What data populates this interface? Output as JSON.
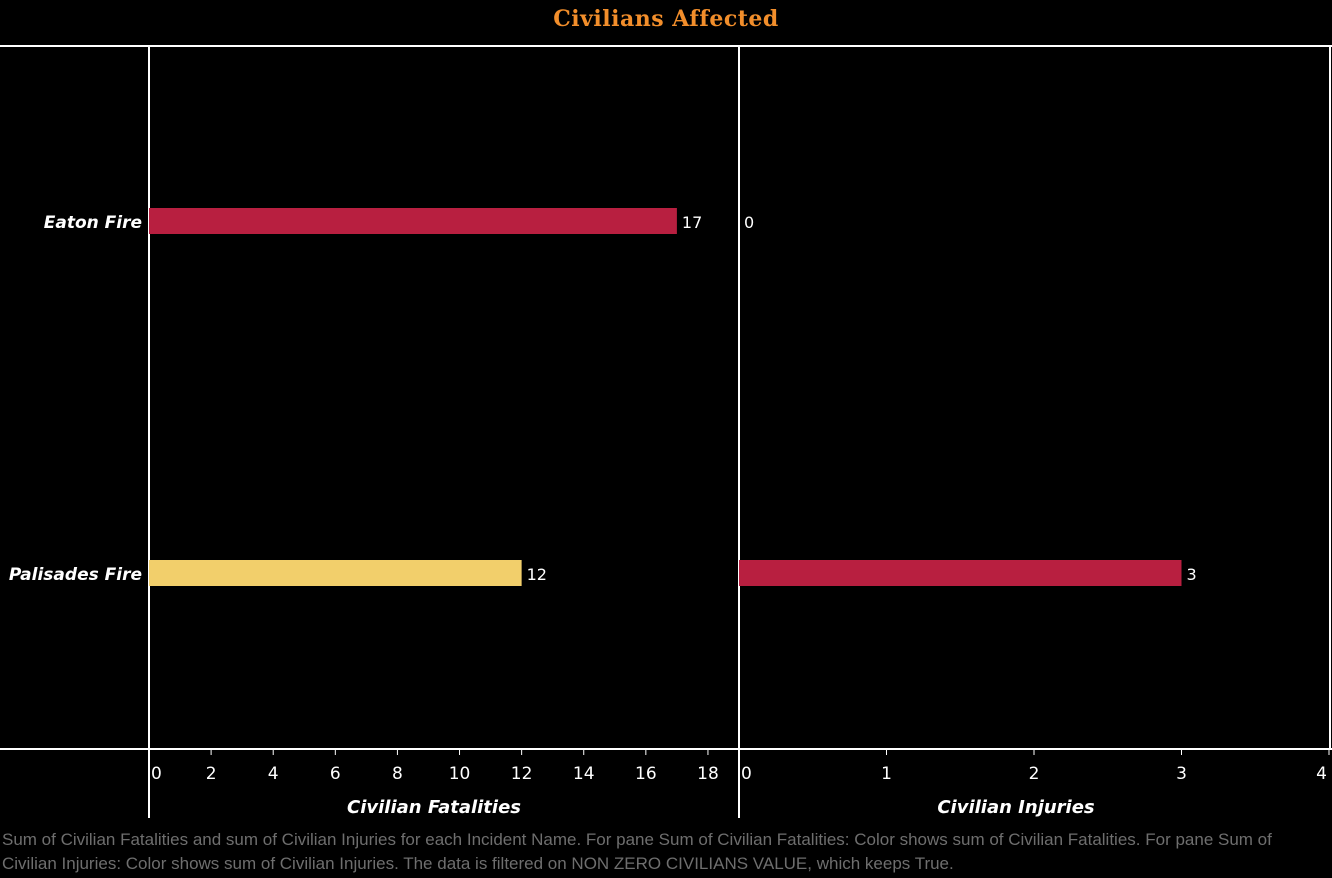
{
  "title": "Civilians Affected",
  "caption": "Sum of Civilian Fatalities and sum of Civilian Injuries for each Incident Name.  For pane Sum of Civilian Fatalities:  Color shows sum of Civilian Fatalities.  For pane Sum of Civilian Injuries:  Color shows sum of Civilian Injuries. The data is filtered on NON ZERO  CIVILIANS VALUE, which keeps True.",
  "colors": {
    "background": "#000000",
    "title": "#f28e2b",
    "axis": "#ffffff",
    "high_value": "#b81f40",
    "low_value": "#f2cf6b",
    "caption": "#6e6e6e"
  },
  "chart_data": {
    "type": "bar",
    "orientation": "horizontal",
    "categories": [
      "Eaton Fire",
      "Palisades Fire"
    ],
    "panes": [
      {
        "name": "Civilian Fatalities",
        "xlabel": "Civilian Fatalities",
        "values": [
          17,
          12
        ],
        "value_labels": [
          "17",
          "12"
        ],
        "bar_colors": [
          "#b81f40",
          "#f2cf6b"
        ],
        "xlim": [
          0,
          19
        ],
        "ticks": [
          0,
          2,
          4,
          6,
          8,
          10,
          12,
          14,
          16,
          18
        ]
      },
      {
        "name": "Civilian Injuries",
        "xlabel": "Civilian Injuries",
        "values": [
          0,
          3
        ],
        "value_labels": [
          "0",
          "3"
        ],
        "bar_colors": [
          "#b81f40",
          "#b81f40"
        ],
        "xlim": [
          0,
          4
        ],
        "ticks": [
          0,
          1,
          2,
          3,
          4
        ]
      }
    ],
    "grid": false,
    "legend": "none"
  }
}
